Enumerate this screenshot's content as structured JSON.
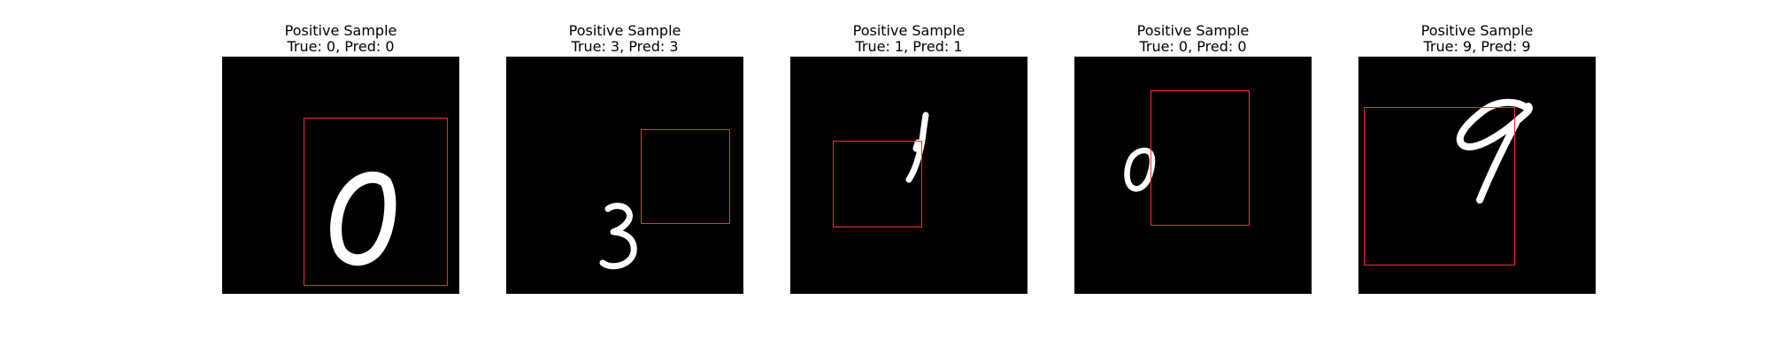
{
  "figure": {
    "colors": {
      "background": "#ffffff",
      "image_background": "#000000",
      "digit_stroke": "#ffffff",
      "bbox": "#ff2a2a"
    },
    "panels": [
      {
        "title": "Positive Sample",
        "subtitle": "True: 0, Pred: 0"
      },
      {
        "title": "Positive Sample",
        "subtitle": "True: 3, Pred: 3"
      },
      {
        "title": "Positive Sample",
        "subtitle": "True: 1, Pred: 1"
      },
      {
        "title": "Positive Sample",
        "subtitle": "True: 0, Pred: 0"
      },
      {
        "title": "Positive Sample",
        "subtitle": "True: 9, Pred: 9"
      }
    ]
  }
}
